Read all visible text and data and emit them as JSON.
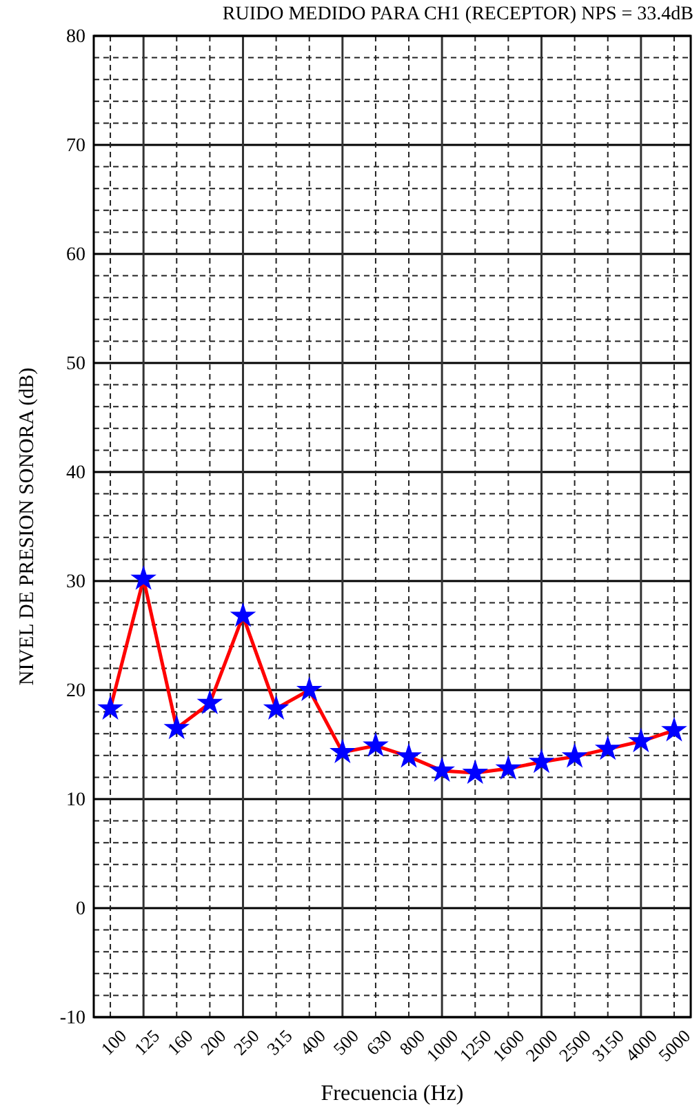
{
  "chart_data": {
    "type": "line",
    "title": "RUIDO MEDIDO PARA CH1 (RECEPTOR) NPS = 33.4dB",
    "xlabel": "Frecuencia (Hz)",
    "ylabel": "NIVEL DE PRESION SONORA (dB)",
    "categories": [
      "100",
      "125",
      "160",
      "200",
      "250",
      "315",
      "400",
      "500",
      "630",
      "800",
      "1000",
      "1250",
      "1600",
      "2000",
      "2500",
      "3150",
      "4000",
      "5000"
    ],
    "series": [
      {
        "color": "#ff0000",
        "values": [
          18.3,
          30.2,
          16.5,
          18.8,
          26.8,
          18.3,
          20.0,
          14.3,
          14.9,
          13.9,
          12.6,
          12.4,
          12.8,
          13.4,
          13.9,
          14.6,
          15.3,
          16.3
        ]
      }
    ],
    "ylim": [
      -10,
      80
    ],
    "yticks": [
      -10,
      0,
      10,
      20,
      30,
      40,
      50,
      60,
      70,
      80
    ],
    "grid": true,
    "marker": "star",
    "line_style": "solid"
  }
}
